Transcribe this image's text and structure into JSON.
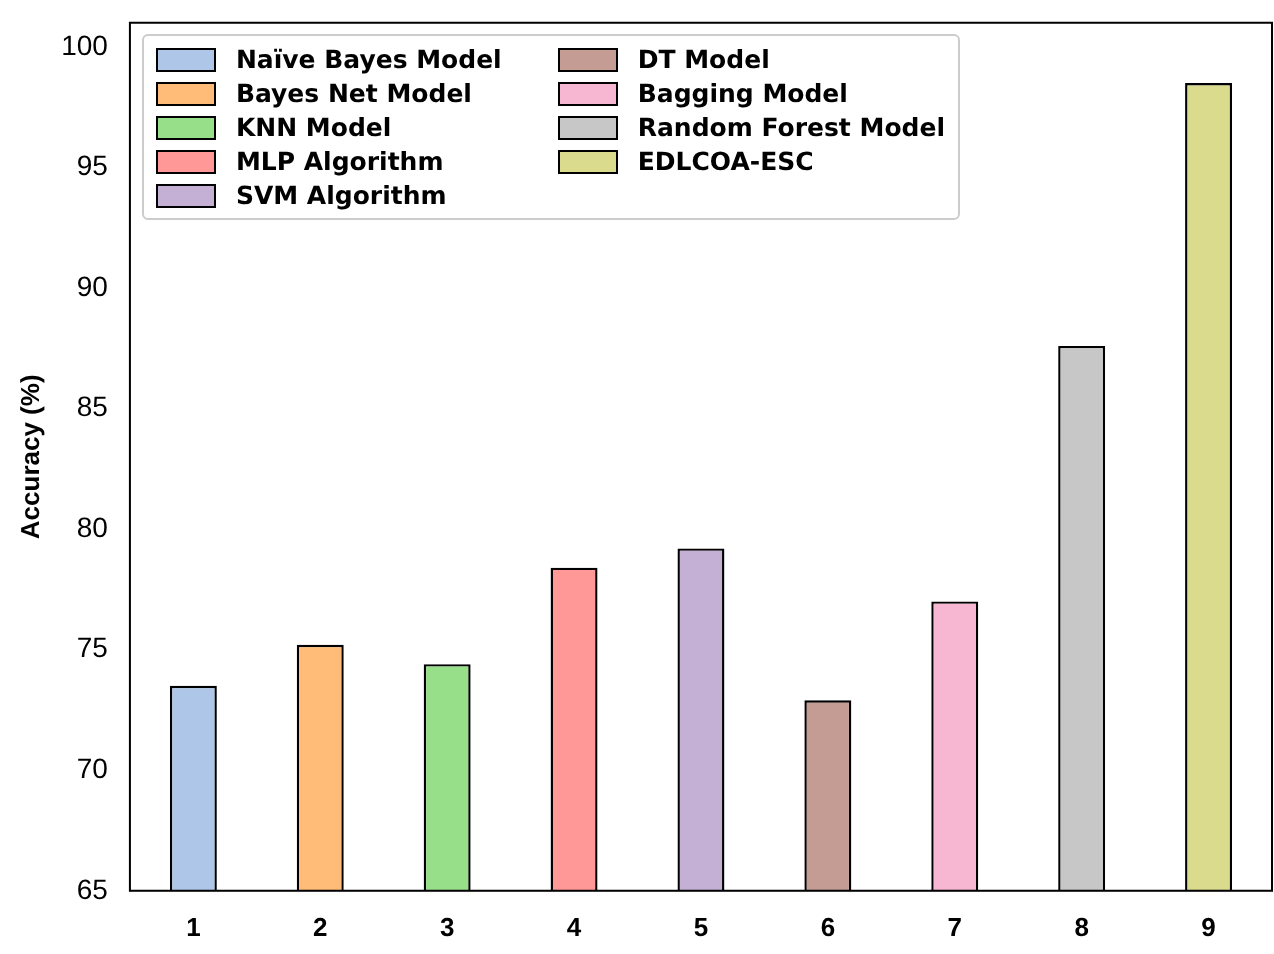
{
  "chart_data": {
    "type": "bar",
    "ylabel": "Accuracy (%)",
    "categories": [
      "1",
      "2",
      "3",
      "4",
      "5",
      "6",
      "7",
      "8",
      "9"
    ],
    "series": [
      {
        "name": "Naïve Bayes Model",
        "color": "#aec7e8",
        "values": [
          73.5,
          null,
          null,
          null,
          null,
          null,
          null,
          null,
          null
        ]
      },
      {
        "name": "Bayes Net Model",
        "color": "#ffbb78",
        "values": [
          null,
          75.2,
          null,
          null,
          null,
          null,
          null,
          null,
          null
        ]
      },
      {
        "name": "KNN Model",
        "color": "#98df8a",
        "values": [
          null,
          null,
          74.4,
          null,
          null,
          null,
          null,
          null,
          null
        ]
      },
      {
        "name": "MLP Algorithm",
        "color": "#ff9896",
        "values": [
          null,
          null,
          null,
          78.4,
          null,
          null,
          null,
          null,
          null
        ]
      },
      {
        "name": "SVM Algorithm",
        "color": "#c5b0d5",
        "values": [
          null,
          null,
          null,
          null,
          79.2,
          null,
          null,
          null,
          null
        ]
      },
      {
        "name": "DT Model",
        "color": "#c49c94",
        "values": [
          null,
          null,
          null,
          null,
          null,
          72.9,
          null,
          null,
          null
        ]
      },
      {
        "name": "Bagging Model",
        "color": "#f7b6d2",
        "values": [
          null,
          null,
          null,
          null,
          null,
          null,
          77.0,
          null,
          null
        ]
      },
      {
        "name": "Random Forest Model",
        "color": "#c7c7c7",
        "values": [
          null,
          null,
          null,
          null,
          null,
          null,
          null,
          87.6,
          null
        ]
      },
      {
        "name": "EDLCOA-ESC",
        "color": "#dbdb8d",
        "values": [
          null,
          null,
          null,
          null,
          null,
          null,
          null,
          null,
          98.5
        ]
      }
    ],
    "ylim": [
      65,
      101
    ],
    "yticks": [
      65,
      70,
      75,
      80,
      85,
      90,
      95,
      100
    ],
    "grid": false,
    "legend": "top left"
  }
}
